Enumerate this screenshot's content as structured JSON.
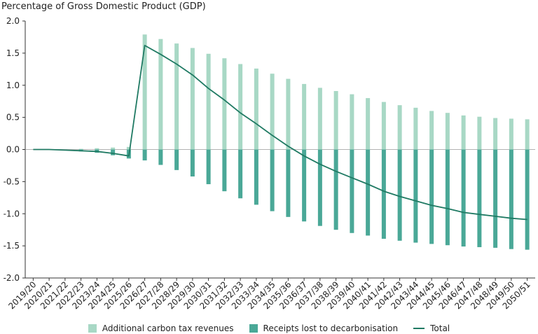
{
  "chart_data": {
    "type": "bar",
    "ylabel": "Percentage of Gross Domestic Product (GDP)",
    "ylim": [
      -2.0,
      2.0
    ],
    "yticks": [
      "2.0",
      "1.5",
      "1.0",
      "0.5",
      "0.0",
      "-0.5",
      "-1.0",
      "-1.5",
      "-2.0"
    ],
    "categories": [
      "2019/20",
      "2020/21",
      "2021/22",
      "2022/23",
      "2023/24",
      "2024/25",
      "2025/26",
      "2026/27",
      "2027/28",
      "2028/29",
      "2029/30",
      "2030/31",
      "2031/32",
      "2032/33",
      "2033/34",
      "2034/35",
      "2035/36",
      "2036/37",
      "2037/38",
      "2038/39",
      "2039/40",
      "2040/41",
      "2041/42",
      "2042/43",
      "2043/44",
      "2044/45",
      "2045/46",
      "2046/47",
      "2047/48",
      "2048/49",
      "2049/50",
      "2050/51"
    ],
    "series": [
      {
        "name": "Additional carbon tax revenues",
        "type": "bar",
        "color": "#a8d8c5",
        "values": [
          0,
          0,
          0,
          0.01,
          0.02,
          0.03,
          0.04,
          1.79,
          1.72,
          1.65,
          1.58,
          1.49,
          1.42,
          1.33,
          1.26,
          1.18,
          1.1,
          1.02,
          0.96,
          0.91,
          0.86,
          0.8,
          0.74,
          0.69,
          0.65,
          0.6,
          0.57,
          0.53,
          0.51,
          0.49,
          0.48,
          0.47
        ]
      },
      {
        "name": "Receipts lost to decarbonisation",
        "type": "bar",
        "color": "#4aa897",
        "values": [
          0,
          0,
          -0.01,
          -0.03,
          -0.05,
          -0.09,
          -0.14,
          -0.17,
          -0.24,
          -0.32,
          -0.42,
          -0.54,
          -0.65,
          -0.76,
          -0.86,
          -0.96,
          -1.05,
          -1.12,
          -1.19,
          -1.25,
          -1.3,
          -1.34,
          -1.39,
          -1.42,
          -1.45,
          -1.47,
          -1.49,
          -1.51,
          -1.52,
          -1.53,
          -1.55,
          -1.56
        ]
      },
      {
        "name": "Total",
        "type": "line",
        "color": "#1f7a63",
        "values": [
          0,
          0,
          -0.01,
          -0.02,
          -0.03,
          -0.06,
          -0.1,
          1.62,
          1.48,
          1.33,
          1.16,
          0.95,
          0.77,
          0.57,
          0.4,
          0.22,
          0.05,
          -0.1,
          -0.23,
          -0.34,
          -0.44,
          -0.54,
          -0.65,
          -0.73,
          -0.8,
          -0.87,
          -0.92,
          -0.98,
          -1.01,
          -1.04,
          -1.07,
          -1.09
        ]
      }
    ],
    "legend_position": "bottom",
    "grid": false
  }
}
